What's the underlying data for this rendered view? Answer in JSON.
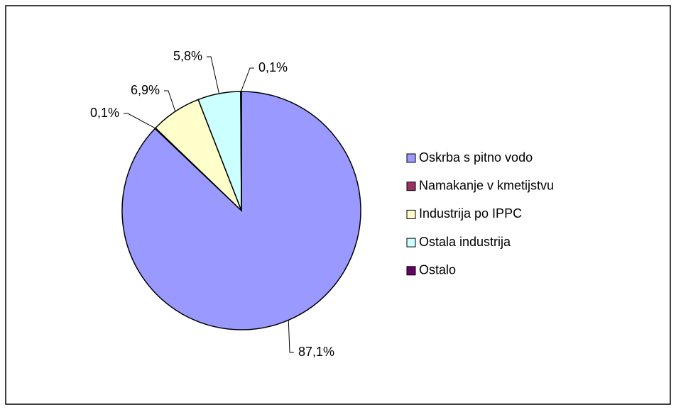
{
  "chart_data": {
    "type": "pie",
    "categories": [
      "Oskrba s pitno vodo",
      "Namakanje v kmetijstvu",
      "Industrija po IPPC",
      "Ostala industrija",
      "Ostalo"
    ],
    "values": [
      87.1,
      0.1,
      6.9,
      5.8,
      0.1
    ],
    "value_labels": [
      "87,1%",
      "0,1%",
      "6,9%",
      "5,8%",
      "0,1%"
    ],
    "colors": [
      "#9999ff",
      "#993366",
      "#ffffcc",
      "#ccffff",
      "#660066"
    ],
    "legend": "right"
  }
}
